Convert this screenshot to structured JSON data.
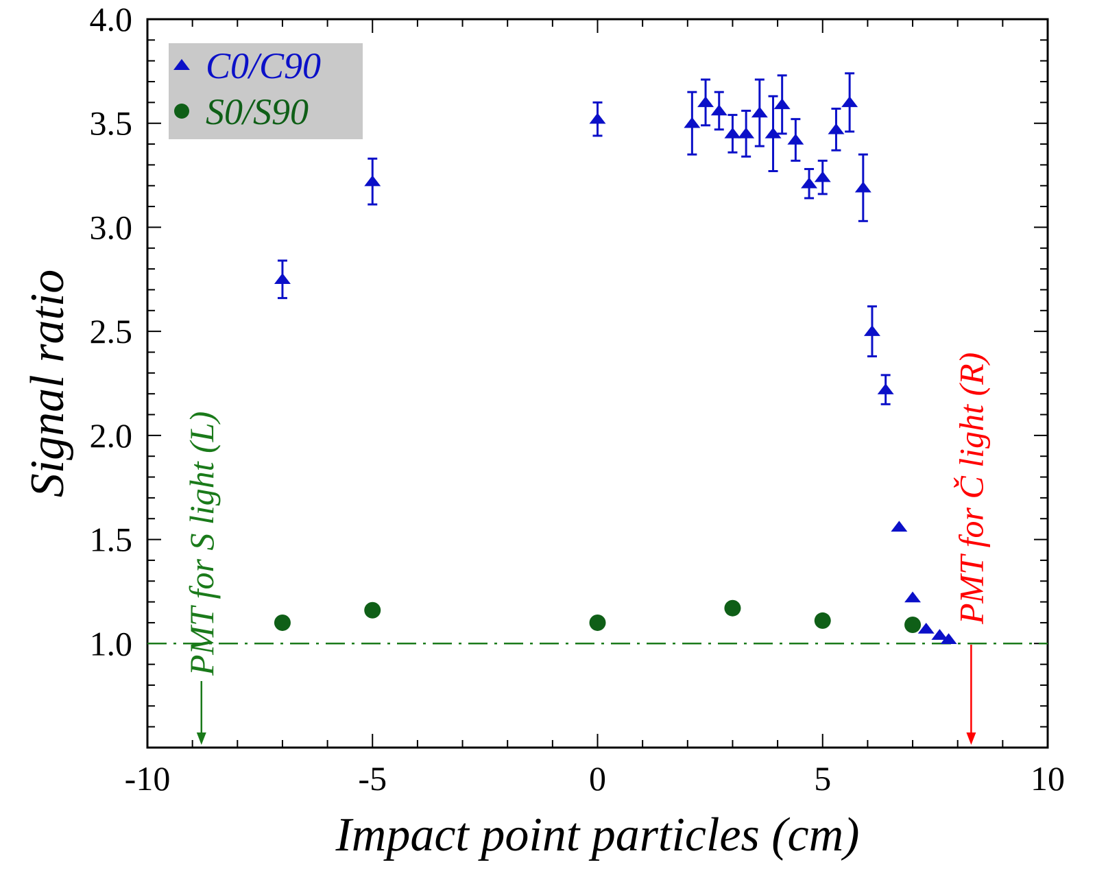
{
  "chart_data": {
    "type": "scatter",
    "xlabel": "Impact point particles (cm)",
    "ylabel": "Signal ratio",
    "xlim": [
      -10,
      10
    ],
    "ylim": [
      0.5,
      4.0
    ],
    "x_ticks": [
      "-10",
      "-5",
      "0",
      "5",
      "10"
    ],
    "y_ticks": [
      "1.0",
      "1.5",
      "2.0",
      "2.5",
      "3.0",
      "3.5",
      "4.0"
    ],
    "grid": false,
    "legend_position": "top-left",
    "reference_line": {
      "y": 1.0,
      "style": "dash-dot",
      "color": "#1a7a1a"
    },
    "series": [
      {
        "name": "C0/C90",
        "marker": "triangle",
        "color": "#0b10c8",
        "points": [
          {
            "x": -7.0,
            "y": 2.75,
            "err": 0.09
          },
          {
            "x": -5.0,
            "y": 3.22,
            "err": 0.11
          },
          {
            "x": 0.0,
            "y": 3.52,
            "err": 0.08
          },
          {
            "x": 2.1,
            "y": 3.5,
            "err": 0.15
          },
          {
            "x": 2.4,
            "y": 3.6,
            "err": 0.11
          },
          {
            "x": 2.7,
            "y": 3.56,
            "err": 0.09
          },
          {
            "x": 3.0,
            "y": 3.45,
            "err": 0.09
          },
          {
            "x": 3.3,
            "y": 3.45,
            "err": 0.11
          },
          {
            "x": 3.6,
            "y": 3.55,
            "err": 0.16
          },
          {
            "x": 3.9,
            "y": 3.45,
            "err": 0.18
          },
          {
            "x": 4.1,
            "y": 3.59,
            "err": 0.14
          },
          {
            "x": 4.4,
            "y": 3.42,
            "err": 0.1
          },
          {
            "x": 4.7,
            "y": 3.21,
            "err": 0.07
          },
          {
            "x": 5.0,
            "y": 3.24,
            "err": 0.08
          },
          {
            "x": 5.3,
            "y": 3.47,
            "err": 0.1
          },
          {
            "x": 5.6,
            "y": 3.6,
            "err": 0.14
          },
          {
            "x": 5.9,
            "y": 3.19,
            "err": 0.16
          },
          {
            "x": 6.1,
            "y": 2.5,
            "err": 0.12
          },
          {
            "x": 6.4,
            "y": 2.22,
            "err": 0.07
          },
          {
            "x": 6.7,
            "y": 1.56,
            "err": 0.0
          },
          {
            "x": 7.0,
            "y": 1.22,
            "err": 0.0
          },
          {
            "x": 7.3,
            "y": 1.07,
            "err": 0.0
          },
          {
            "x": 7.6,
            "y": 1.04,
            "err": 0.0
          },
          {
            "x": 7.8,
            "y": 1.02,
            "err": 0.0
          }
        ]
      },
      {
        "name": "S0/S90",
        "marker": "circle",
        "color": "#0f5f17",
        "points": [
          {
            "x": -7.0,
            "y": 1.1
          },
          {
            "x": -5.0,
            "y": 1.16
          },
          {
            "x": 0.0,
            "y": 1.1
          },
          {
            "x": 3.0,
            "y": 1.17
          },
          {
            "x": 5.0,
            "y": 1.11
          },
          {
            "x": 7.0,
            "y": 1.09
          }
        ]
      }
    ],
    "annotations": [
      {
        "text": "PMT for S light (L)",
        "x": -8.8,
        "color": "#1a7a1a",
        "arrow": "down"
      },
      {
        "text": "PMT for Č light (R)",
        "x": 8.3,
        "color": "#ff0000",
        "arrow": "down"
      }
    ]
  }
}
